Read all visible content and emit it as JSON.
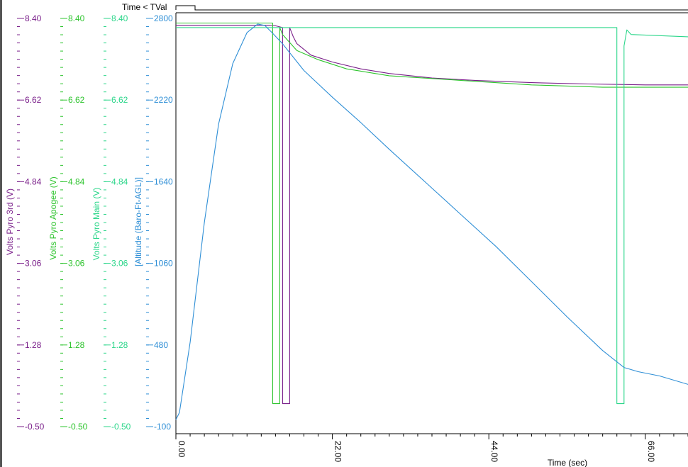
{
  "chart_data": {
    "type": "line",
    "x_label": "Time (sec)",
    "x_ticks": [
      "0.00",
      "22.00",
      "44.00",
      "66.00"
    ],
    "xlim": [
      0,
      72
    ],
    "time_marker": {
      "label": "Time < TVal"
    },
    "colors": {
      "pyro3": "#7a1f8a",
      "apogee": "#2ec42e",
      "main": "#2bd68a",
      "altitude": "#2f8fd6",
      "axis": "#000000"
    },
    "axes": [
      {
        "key": "pyro3",
        "label": "Volts Pyro 3rd (V)",
        "ticks": [
          "8.40",
          "6.62",
          "4.84",
          "3.06",
          "1.28",
          "-0.50"
        ],
        "ylim": [
          -0.5,
          8.4
        ]
      },
      {
        "key": "apogee",
        "label": "Volts Pyro Apogee (V)",
        "ticks": [
          "8.40",
          "6.62",
          "4.84",
          "3.06",
          "1.28",
          "-0.50"
        ],
        "ylim": [
          -0.5,
          8.4
        ]
      },
      {
        "key": "main",
        "label": "Volts Pyro Main (V)",
        "ticks": [
          "8.40",
          "6.62",
          "4.84",
          "3.06",
          "1.28",
          "-0.50"
        ],
        "ylim": [
          -0.5,
          8.4
        ]
      },
      {
        "key": "altitude",
        "label": "[Altitude (Baro-Ft-AGL)]",
        "ticks": [
          "2800",
          "2220",
          "1640",
          "1060",
          "480",
          "-100"
        ],
        "ylim": [
          -100,
          2800
        ]
      }
    ],
    "series": [
      {
        "name": "Volts Pyro 3rd (V)",
        "axis": "pyro3",
        "x": [
          0,
          13,
          14,
          15,
          15.0,
          16.0,
          16.0,
          16.5,
          17,
          19,
          22,
          26,
          30,
          36,
          42,
          50,
          58,
          66,
          72
        ],
        "y": [
          8.25,
          8.25,
          8.24,
          8.2,
          0.0,
          0.0,
          8.2,
          8.0,
          7.85,
          7.6,
          7.45,
          7.3,
          7.2,
          7.1,
          7.05,
          7.0,
          6.97,
          6.95,
          6.95
        ]
      },
      {
        "name": "Volts Pyro Apogee (V)",
        "axis": "apogee",
        "x": [
          0,
          13,
          13.6,
          13.6,
          14.6,
          14.6,
          15,
          17,
          20,
          24,
          30,
          40,
          50,
          60,
          72
        ],
        "y": [
          8.3,
          8.3,
          8.3,
          0.0,
          0.0,
          8.2,
          8.05,
          7.7,
          7.5,
          7.3,
          7.15,
          7.05,
          6.95,
          6.9,
          6.9
        ]
      },
      {
        "name": "Volts Pyro Main (V)",
        "axis": "main",
        "x": [
          0,
          14,
          20,
          40,
          62,
          62,
          63,
          63,
          63.4,
          64,
          72
        ],
        "y": [
          8.2,
          8.2,
          8.2,
          8.2,
          8.2,
          0.0,
          0.0,
          7.8,
          8.15,
          8.05,
          8.0
        ]
      },
      {
        "name": "[Altitude (Baro-Ft-AGL)]",
        "axis": "altitude",
        "x": [
          0,
          0.5,
          2,
          4,
          6,
          8,
          10,
          11.5,
          12.5,
          13.5,
          15,
          18,
          22,
          26,
          30,
          35,
          40,
          45,
          50,
          55,
          60,
          63,
          65,
          68,
          72
        ],
        "y": [
          -50,
          0,
          500,
          1350,
          2050,
          2480,
          2700,
          2760,
          2750,
          2700,
          2620,
          2430,
          2240,
          2060,
          1870,
          1640,
          1410,
          1180,
          930,
          680,
          440,
          320,
          290,
          260,
          200
        ]
      }
    ]
  }
}
